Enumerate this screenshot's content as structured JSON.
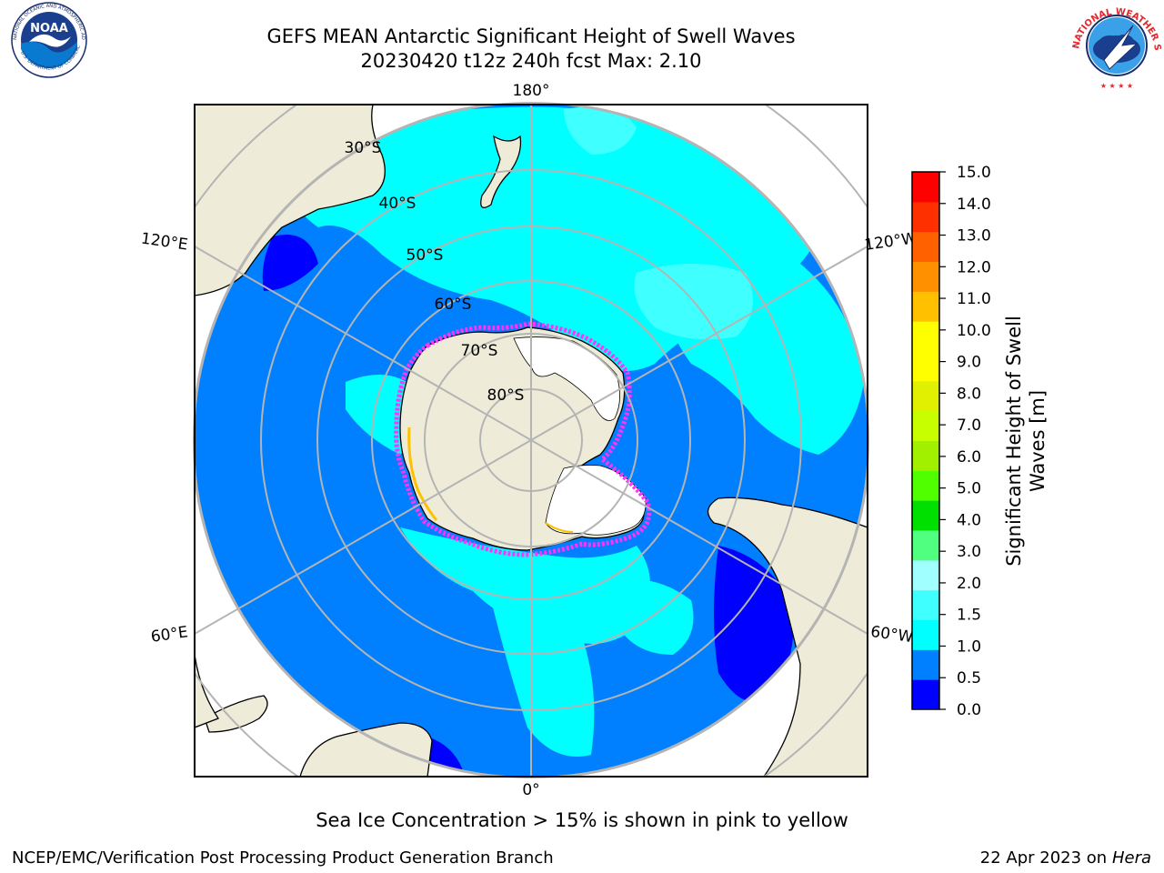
{
  "header": {
    "title_line1": "GEFS MEAN Antarctic Significant Height of Swell Waves",
    "title_line2": "20230420 t12z 240h fcst   Max: 2.10"
  },
  "logos": {
    "left": {
      "name": "noaa-logo",
      "text": "NOAA",
      "ring_text": "NATIONAL OCEANIC AND ATMOSPHERIC ADMINISTRATION · U.S. DEPARTMENT OF COMMERCE"
    },
    "right": {
      "name": "nws-logo",
      "ring_text": "NATIONAL WEATHER SERVICE"
    }
  },
  "map": {
    "projection": "south-polar-stereographic",
    "longitude_labels": [
      "180°",
      "120°E",
      "120°W",
      "60°E",
      "60°W",
      "0°"
    ],
    "latitude_labels": [
      "30°S",
      "40°S",
      "50°S",
      "60°S",
      "70°S",
      "80°S"
    ],
    "colors": {
      "land": "#eeecd9",
      "ice_fill": "#ffffff",
      "ice_edge": [
        "#ff33ff",
        "#ffc000"
      ],
      "graticule": "#b4b4b4"
    }
  },
  "colorbar": {
    "label": "Significant Height of Swell Waves [m]",
    "ticks": [
      "15.0",
      "14.0",
      "13.0",
      "12.0",
      "11.0",
      "10.0",
      "9.0",
      "8.0",
      "7.0",
      "6.0",
      "5.0",
      "4.0",
      "3.0",
      "2.0",
      "1.5",
      "1.0",
      "0.5",
      "0.0"
    ],
    "colors": [
      "#0000ff",
      "#0080ff",
      "#00ffff",
      "#40ffff",
      "#a0ffff",
      "#50ff80",
      "#00e000",
      "#50ff00",
      "#a0f000",
      "#c8ff00",
      "#e0f000",
      "#ffff00",
      "#ffff00",
      "#ffc000",
      "#ff9000",
      "#ff6000",
      "#ff3000",
      "#ff0000"
    ]
  },
  "caption": "Sea Ice Concentration > 15% is shown in pink to yellow",
  "footer": {
    "left": "NCEP/EMC/Verification Post Processing Product Generation Branch",
    "date": "22 Apr 2023 on ",
    "machine": "Hera"
  }
}
